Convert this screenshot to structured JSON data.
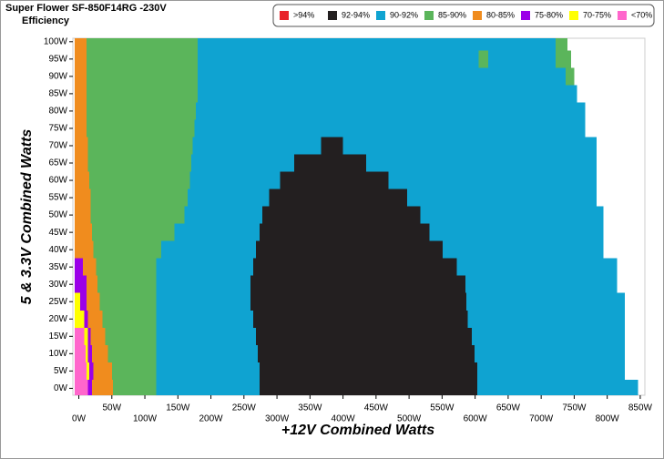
{
  "chart_data": {
    "type": "region-map",
    "title": "Super Flower SF-850F14RG -230V",
    "subtitle": "Efficiency",
    "x_label": "+12V Combined Watts",
    "y_label": "5 & 3.3V Combined Watts",
    "xlim": [
      -9,
      857
    ],
    "ylim": [
      -2,
      101
    ],
    "row_height": 5,
    "xticks": [
      {
        "value": 0,
        "label": "0W"
      },
      {
        "value": 50,
        "label": "50W"
      },
      {
        "value": 100,
        "label": "100W"
      },
      {
        "value": 150,
        "label": "150W"
      },
      {
        "value": 200,
        "label": "200W"
      },
      {
        "value": 250,
        "label": "250W"
      },
      {
        "value": 300,
        "label": "300W"
      },
      {
        "value": 350,
        "label": "350W"
      },
      {
        "value": 400,
        "label": "400W"
      },
      {
        "value": 450,
        "label": "450W"
      },
      {
        "value": 500,
        "label": "500W"
      },
      {
        "value": 550,
        "label": "550W"
      },
      {
        "value": 600,
        "label": "600W"
      },
      {
        "value": 650,
        "label": "650W"
      },
      {
        "value": 700,
        "label": "700W"
      },
      {
        "value": 750,
        "label": "750W"
      },
      {
        "value": 800,
        "label": "800W"
      },
      {
        "value": 850,
        "label": "850W"
      }
    ],
    "yticks": [
      {
        "value": 0,
        "label": "0W"
      },
      {
        "value": 5,
        "label": "5W"
      },
      {
        "value": 10,
        "label": "10W"
      },
      {
        "value": 15,
        "label": "15W"
      },
      {
        "value": 20,
        "label": "20W"
      },
      {
        "value": 25,
        "label": "25W"
      },
      {
        "value": 30,
        "label": "30W"
      },
      {
        "value": 35,
        "label": "35W"
      },
      {
        "value": 40,
        "label": "40W"
      },
      {
        "value": 45,
        "label": "45W"
      },
      {
        "value": 50,
        "label": "50W"
      },
      {
        "value": 55,
        "label": "55W"
      },
      {
        "value": 60,
        "label": "60W"
      },
      {
        "value": 65,
        "label": "65W"
      },
      {
        "value": 70,
        "label": "70W"
      },
      {
        "value": 75,
        "label": "75W"
      },
      {
        "value": 80,
        "label": "80W"
      },
      {
        "value": 85,
        "label": "85W"
      },
      {
        "value": 90,
        "label": "90W"
      },
      {
        "value": 95,
        "label": "95W"
      },
      {
        "value": 100,
        "label": "100W"
      }
    ],
    "series": [
      {
        "name": ">94%",
        "color": "#e8232b",
        "segments": []
      },
      {
        "name": "92-94%",
        "color": "#231f20",
        "segments": [
          [
            0,
            274,
            603
          ],
          [
            5,
            274,
            603
          ],
          [
            10,
            271,
            599
          ],
          [
            15,
            268,
            595
          ],
          [
            20,
            264,
            589
          ],
          [
            25,
            260,
            587
          ],
          [
            30,
            260,
            585
          ],
          [
            35,
            264,
            572
          ],
          [
            40,
            268,
            551
          ],
          [
            45,
            274,
            531
          ],
          [
            50,
            278,
            517
          ],
          [
            55,
            288,
            497
          ],
          [
            60,
            305,
            469
          ],
          [
            65,
            326,
            435
          ],
          [
            70,
            367,
            400
          ]
        ]
      },
      {
        "name": "90-92%",
        "color": "#0fa3d1",
        "segments": [
          [
            0,
            117,
            274
          ],
          [
            0,
            603,
            847
          ],
          [
            5,
            117,
            274
          ],
          [
            5,
            603,
            827
          ],
          [
            10,
            117,
            271
          ],
          [
            10,
            599,
            827
          ],
          [
            15,
            117,
            268
          ],
          [
            15,
            595,
            827
          ],
          [
            20,
            117,
            264
          ],
          [
            20,
            589,
            827
          ],
          [
            25,
            117,
            260
          ],
          [
            25,
            587,
            827
          ],
          [
            30,
            117,
            260
          ],
          [
            30,
            585,
            815
          ],
          [
            35,
            117,
            264
          ],
          [
            35,
            572,
            815
          ],
          [
            40,
            125,
            268
          ],
          [
            40,
            551,
            794
          ],
          [
            45,
            145,
            274
          ],
          [
            45,
            531,
            794
          ],
          [
            50,
            160,
            278
          ],
          [
            50,
            517,
            794
          ],
          [
            55,
            165,
            288
          ],
          [
            55,
            497,
            784
          ],
          [
            60,
            168,
            305
          ],
          [
            60,
            469,
            784
          ],
          [
            65,
            170,
            326
          ],
          [
            65,
            435,
            784
          ],
          [
            70,
            172,
            367
          ],
          [
            70,
            400,
            784
          ],
          [
            75,
            175,
            767
          ],
          [
            80,
            177,
            767
          ],
          [
            85,
            180,
            754
          ],
          [
            90,
            180,
            737
          ],
          [
            95,
            180,
            605
          ],
          [
            95,
            620,
            722
          ],
          [
            100,
            180,
            722
          ]
        ]
      },
      {
        "name": "85-90%",
        "color": "#5bb55b",
        "segments": [
          [
            0,
            52,
            117
          ],
          [
            5,
            50,
            117
          ],
          [
            10,
            44,
            117
          ],
          [
            15,
            40,
            117
          ],
          [
            20,
            36,
            117
          ],
          [
            25,
            32,
            117
          ],
          [
            30,
            28,
            117
          ],
          [
            35,
            26,
            117
          ],
          [
            40,
            22,
            125
          ],
          [
            45,
            20,
            145
          ],
          [
            50,
            18,
            160
          ],
          [
            55,
            18,
            165
          ],
          [
            60,
            16,
            168
          ],
          [
            65,
            14,
            170
          ],
          [
            70,
            14,
            172
          ],
          [
            75,
            12,
            175
          ],
          [
            80,
            12,
            177
          ],
          [
            85,
            12,
            180
          ],
          [
            90,
            12,
            180
          ],
          [
            90,
            737,
            750
          ],
          [
            95,
            12,
            180
          ],
          [
            95,
            605,
            620
          ],
          [
            95,
            722,
            745
          ],
          [
            100,
            12,
            180
          ],
          [
            100,
            722,
            740
          ]
        ]
      },
      {
        "name": "80-85%",
        "color": "#f08c1e",
        "segments": [
          [
            0,
            20,
            52
          ],
          [
            5,
            22,
            50
          ],
          [
            10,
            20,
            44
          ],
          [
            15,
            18,
            40
          ],
          [
            20,
            14,
            36
          ],
          [
            25,
            12,
            32
          ],
          [
            30,
            12,
            28
          ],
          [
            35,
            6,
            26
          ],
          [
            40,
            -6,
            22
          ],
          [
            45,
            -6,
            20
          ],
          [
            50,
            -6,
            18
          ],
          [
            55,
            -6,
            18
          ],
          [
            60,
            -6,
            16
          ],
          [
            65,
            -6,
            14
          ],
          [
            70,
            -6,
            14
          ],
          [
            75,
            -6,
            12
          ],
          [
            80,
            -6,
            12
          ],
          [
            85,
            -6,
            12
          ],
          [
            90,
            -6,
            12
          ],
          [
            95,
            -6,
            12
          ],
          [
            100,
            -6,
            12
          ]
        ]
      },
      {
        "name": "75-80%",
        "color": "#9b00e8",
        "segments": [
          [
            0,
            14,
            20
          ],
          [
            5,
            16,
            22
          ],
          [
            10,
            14,
            20
          ],
          [
            15,
            14,
            18
          ],
          [
            20,
            8,
            14
          ],
          [
            25,
            2,
            12
          ],
          [
            30,
            -6,
            12
          ],
          [
            35,
            -6,
            6
          ]
        ]
      },
      {
        "name": "70-75%",
        "color": "#ffff00",
        "segments": [
          [
            5,
            12,
            16
          ],
          [
            10,
            10,
            14
          ],
          [
            15,
            8,
            14
          ],
          [
            20,
            -6,
            8
          ],
          [
            25,
            -6,
            2
          ]
        ]
      },
      {
        "name": "<70%",
        "color": "#ff66cc",
        "segments": [
          [
            0,
            -6,
            14
          ],
          [
            5,
            -6,
            12
          ],
          [
            10,
            -6,
            10
          ],
          [
            15,
            -6,
            8
          ]
        ]
      }
    ]
  }
}
